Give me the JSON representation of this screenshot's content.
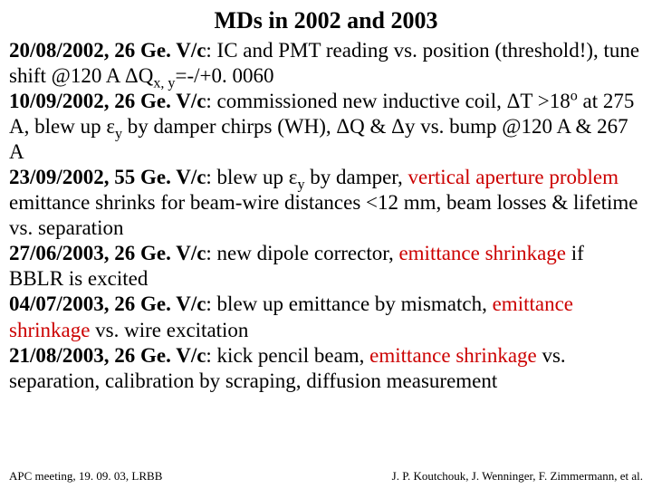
{
  "title": "MDs in 2002 and 2003",
  "colors": {
    "black": "#000000",
    "red": "#cc0000"
  },
  "segments": [
    {
      "t": "20/08/2002, 26 Ge. V/c",
      "b": true,
      "c": "black"
    },
    {
      "t": ": IC and PMT reading vs. position (threshold!), tune shift @120 A ",
      "c": "black"
    },
    {
      "t": "D",
      "font": "sym",
      "c": "black"
    },
    {
      "t": "Q",
      "c": "black"
    },
    {
      "t": "x, y",
      "sub": true,
      "c": "black"
    },
    {
      "t": "=-/+0. 0060",
      "c": "black"
    },
    {
      "br": true
    },
    {
      "t": "10/09/2002, 26 Ge. V/c",
      "b": true,
      "c": "black"
    },
    {
      "t": ": commissioned new inductive coil, ",
      "c": "black"
    },
    {
      "t": "D",
      "font": "sym",
      "c": "black"
    },
    {
      "t": "T >18",
      "c": "black"
    },
    {
      "t": "o",
      "sup": true,
      "c": "black"
    },
    {
      "t": " at 275 A, blew up ",
      "c": "black"
    },
    {
      "t": "e",
      "font": "sym",
      "c": "black"
    },
    {
      "t": "y",
      "sub": true,
      "c": "black"
    },
    {
      "t": " by damper chirps (WH), ",
      "c": "black"
    },
    {
      "t": "D",
      "font": "sym",
      "c": "black"
    },
    {
      "t": "Q & ",
      "c": "black"
    },
    {
      "t": "D",
      "font": "sym",
      "c": "black"
    },
    {
      "t": "y vs. bump @120 A & 267 A",
      "c": "black"
    },
    {
      "br": true
    },
    {
      "t": "23/09/2002, 55 Ge. V/c",
      "b": true,
      "c": "black"
    },
    {
      "t": ": blew up ",
      "c": "black"
    },
    {
      "t": "e",
      "font": "sym",
      "c": "black"
    },
    {
      "t": "y",
      "sub": true,
      "c": "black"
    },
    {
      "t": " by damper, ",
      "c": "black"
    },
    {
      "t": "vertical aperture problem ",
      "c": "red"
    },
    {
      "t": "emittance shrinks for beam-wire distances <12 mm, beam losses & lifetime vs. separation",
      "c": "black"
    },
    {
      "br": true
    },
    {
      "t": "27/06/2003, 26 Ge. V/c",
      "b": true,
      "c": "black"
    },
    {
      "t": ": new dipole corrector, ",
      "c": "black"
    },
    {
      "t": "emittance shrinkage ",
      "c": "red"
    },
    {
      "t": "if BBLR is excited",
      "c": "black"
    },
    {
      "br": true
    },
    {
      "t": "04/07/2003, 26 Ge. V/c",
      "b": true,
      "c": "black"
    },
    {
      "t": ": blew up emittance by mismatch, ",
      "c": "black"
    },
    {
      "t": "emittance shrinkage ",
      "c": "red"
    },
    {
      "t": "vs. wire excitation",
      "c": "black"
    },
    {
      "br": true
    },
    {
      "t": "21/08/2003, 26 Ge. V/c",
      "b": true,
      "c": "black"
    },
    {
      "t": ": kick pencil beam, ",
      "c": "black"
    },
    {
      "t": "emittance shrinkage ",
      "c": "red"
    },
    {
      "t": "vs. separation, calibration by scraping, diffusion measurement",
      "c": "black"
    }
  ],
  "footer": {
    "left": "APC meeting, 19. 09. 03, LRBB",
    "right": "J. P. Koutchouk, J. Wenninger, F. Zimmermann, et al."
  }
}
